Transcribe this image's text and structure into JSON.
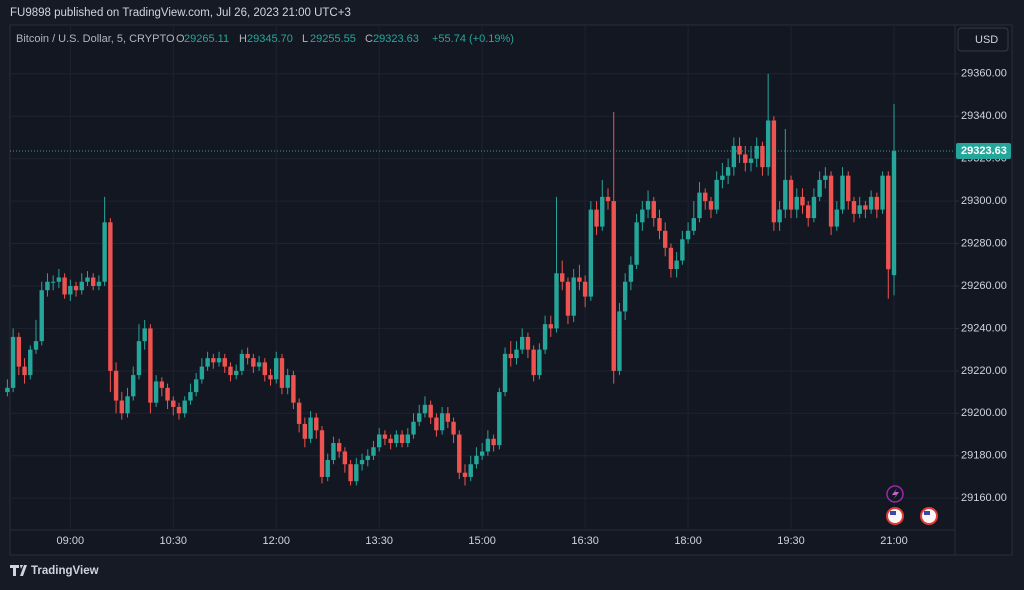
{
  "header": "FU9898 published on TradingView.com, Jul 26, 2023 21:00 UTC+3",
  "footer": "TradingView",
  "chart_data": {
    "type": "candlestick",
    "symbol": "Bitcoin / U.S. Dollar, 5, CRYPTO",
    "ohlc_keys": [
      "O",
      "H",
      "L",
      "C"
    ],
    "ohlc_labels": [
      "29265.11",
      "29345.70",
      "29255.55",
      "29323.63"
    ],
    "change_label": "+55.74 (+0.19%)",
    "currency": "USD",
    "up_color": "#26a69a",
    "down_color": "#ef5350",
    "grid": true,
    "ylim": [
      29145,
      29383
    ],
    "yticks": [
      {
        "value": 29160,
        "label": "29160.00"
      },
      {
        "value": 29180,
        "label": "29180.00"
      },
      {
        "value": 29200,
        "label": "29200.00"
      },
      {
        "value": 29220,
        "label": "29220.00"
      },
      {
        "value": 29240,
        "label": "29240.00"
      },
      {
        "value": 29260,
        "label": "29260.00"
      },
      {
        "value": 29280,
        "label": "29280.00"
      },
      {
        "value": 29300,
        "label": "29300.00"
      },
      {
        "value": 29320,
        "label": "29320.00"
      },
      {
        "value": 29340,
        "label": "29340.00"
      },
      {
        "value": 29360,
        "label": "29360.00"
      }
    ],
    "xticks": [
      "09:00",
      "10:30",
      "12:00",
      "13:30",
      "15:00",
      "16:30",
      "18:00",
      "19:30",
      "21:00"
    ],
    "candles": [
      [
        "08:05",
        29210,
        29216,
        29208,
        29212
      ],
      [
        "08:10",
        29212,
        29240,
        29210,
        29236
      ],
      [
        "08:15",
        29236,
        29238,
        29218,
        29222
      ],
      [
        "08:20",
        29222,
        29226,
        29214,
        29218
      ],
      [
        "08:25",
        29218,
        29232,
        29216,
        29230
      ],
      [
        "08:30",
        29230,
        29244,
        29228,
        29234
      ],
      [
        "08:35",
        29234,
        29262,
        29232,
        29258
      ],
      [
        "08:40",
        29258,
        29266,
        29255,
        29262
      ],
      [
        "08:45",
        29262,
        29265,
        29258,
        29262
      ],
      [
        "08:50",
        29262,
        29268,
        29259,
        29264
      ],
      [
        "08:55",
        29264,
        29266,
        29254,
        29256
      ],
      [
        "09:00",
        29256,
        29263,
        29253,
        29260
      ],
      [
        "09:05",
        29260,
        29262,
        29255,
        29258
      ],
      [
        "09:10",
        29258,
        29266,
        29256,
        29262
      ],
      [
        "09:15",
        29262,
        29267,
        29260,
        29264
      ],
      [
        "09:20",
        29264,
        29266,
        29258,
        29260
      ],
      [
        "09:25",
        29260,
        29265,
        29258,
        29262
      ],
      [
        "09:30",
        29262,
        29302,
        29260,
        29290
      ],
      [
        "09:35",
        29290,
        29292,
        29210,
        29220
      ],
      [
        "09:40",
        29220,
        29224,
        29200,
        29206
      ],
      [
        "09:45",
        29206,
        29210,
        29197,
        29200
      ],
      [
        "09:50",
        29200,
        29212,
        29198,
        29208
      ],
      [
        "09:55",
        29208,
        29222,
        29206,
        29218
      ],
      [
        "10:00",
        29218,
        29242,
        29216,
        29234
      ],
      [
        "10:05",
        29234,
        29244,
        29230,
        29240
      ],
      [
        "10:10",
        29240,
        29242,
        29200,
        29205
      ],
      [
        "10:15",
        29205,
        29218,
        29203,
        29215
      ],
      [
        "10:20",
        29215,
        29217,
        29208,
        29212
      ],
      [
        "10:25",
        29212,
        29214,
        29202,
        29206
      ],
      [
        "10:30",
        29206,
        29208,
        29199,
        29203
      ],
      [
        "10:35",
        29203,
        29205,
        29197,
        29200
      ],
      [
        "10:40",
        29200,
        29208,
        29198,
        29206
      ],
      [
        "10:45",
        29206,
        29214,
        29204,
        29210
      ],
      [
        "10:50",
        29210,
        29219,
        29208,
        29216
      ],
      [
        "10:55",
        29216,
        29226,
        29214,
        29222
      ],
      [
        "11:00",
        29222,
        29229,
        29220,
        29226
      ],
      [
        "11:05",
        29226,
        29228,
        29221,
        29224
      ],
      [
        "11:10",
        29224,
        29229,
        29222,
        29226
      ],
      [
        "11:15",
        29226,
        29228,
        29219,
        29222
      ],
      [
        "11:20",
        29222,
        29224,
        29215,
        29218
      ],
      [
        "11:25",
        29218,
        29223,
        29216,
        29220
      ],
      [
        "11:30",
        29220,
        29230,
        29218,
        29228
      ],
      [
        "11:35",
        29228,
        29231,
        29223,
        29226
      ],
      [
        "11:40",
        29226,
        29228,
        29219,
        29222
      ],
      [
        "11:45",
        29222,
        29227,
        29220,
        29224
      ],
      [
        "11:50",
        29224,
        29226,
        29215,
        29218
      ],
      [
        "11:55",
        29218,
        29221,
        29213,
        29216
      ],
      [
        "12:00",
        29216,
        29229,
        29214,
        29226
      ],
      [
        "12:05",
        29226,
        29228,
        29209,
        29212
      ],
      [
        "12:10",
        29212,
        29221,
        29209,
        29218
      ],
      [
        "12:15",
        29218,
        29220,
        29202,
        29205
      ],
      [
        "12:20",
        29205,
        29207,
        29191,
        29195
      ],
      [
        "12:25",
        29195,
        29198,
        29184,
        29188
      ],
      [
        "12:30",
        29188,
        29201,
        29186,
        29198
      ],
      [
        "12:35",
        29198,
        29200,
        29188,
        29192
      ],
      [
        "12:40",
        29192,
        29194,
        29167,
        29170
      ],
      [
        "12:45",
        29170,
        29181,
        29168,
        29178
      ],
      [
        "12:50",
        29178,
        29189,
        29176,
        29186
      ],
      [
        "12:55",
        29186,
        29188,
        29179,
        29182
      ],
      [
        "13:00",
        29182,
        29184,
        29172,
        29176
      ],
      [
        "13:05",
        29176,
        29178,
        29166,
        29168
      ],
      [
        "13:10",
        29168,
        29179,
        29166,
        29176
      ],
      [
        "13:15",
        29176,
        29181,
        29173,
        29178
      ],
      [
        "13:20",
        29178,
        29183,
        29175,
        29180
      ],
      [
        "13:25",
        29180,
        29187,
        29178,
        29184
      ],
      [
        "13:30",
        29184,
        29193,
        29182,
        29190
      ],
      [
        "13:35",
        29190,
        29192,
        29185,
        29188
      ],
      [
        "13:40",
        29188,
        29190,
        29183,
        29186
      ],
      [
        "13:45",
        29186,
        29192,
        29184,
        29190
      ],
      [
        "13:50",
        29190,
        29192,
        29184,
        29186
      ],
      [
        "13:55",
        29186,
        29193,
        29184,
        29190
      ],
      [
        "14:00",
        29190,
        29200,
        29188,
        29196
      ],
      [
        "14:05",
        29196,
        29204,
        29194,
        29200
      ],
      [
        "14:10",
        29200,
        29208,
        29198,
        29204
      ],
      [
        "14:15",
        29204,
        29206,
        29195,
        29198
      ],
      [
        "14:20",
        29198,
        29200,
        29189,
        29192
      ],
      [
        "14:25",
        29192,
        29203,
        29190,
        29200
      ],
      [
        "14:30",
        29200,
        29203,
        29193,
        29196
      ],
      [
        "14:35",
        29196,
        29198,
        29186,
        29190
      ],
      [
        "14:40",
        29190,
        29192,
        29169,
        29172
      ],
      [
        "14:45",
        29172,
        29176,
        29166,
        29170
      ],
      [
        "14:50",
        29170,
        29180,
        29168,
        29176
      ],
      [
        "14:55",
        29176,
        29184,
        29174,
        29180
      ],
      [
        "15:00",
        29180,
        29186,
        29178,
        29182
      ],
      [
        "15:05",
        29182,
        29192,
        29180,
        29188
      ],
      [
        "15:10",
        29188,
        29190,
        29182,
        29185
      ],
      [
        "15:15",
        29185,
        29212,
        29183,
        29210
      ],
      [
        "15:20",
        29210,
        29231,
        29208,
        29228
      ],
      [
        "15:25",
        29228,
        29234,
        29222,
        29226
      ],
      [
        "15:30",
        29226,
        29234,
        29223,
        29230
      ],
      [
        "15:35",
        29230,
        29240,
        29228,
        29236
      ],
      [
        "15:40",
        29236,
        29238,
        29226,
        29230
      ],
      [
        "15:45",
        29230,
        29232,
        29215,
        29218
      ],
      [
        "15:50",
        29218,
        29233,
        29216,
        29230
      ],
      [
        "15:55",
        29230,
        29246,
        29228,
        29242
      ],
      [
        "16:00",
        29242,
        29246,
        29236,
        29240
      ],
      [
        "16:05",
        29240,
        29302,
        29238,
        29266
      ],
      [
        "16:10",
        29266,
        29272,
        29258,
        29262
      ],
      [
        "16:15",
        29262,
        29264,
        29242,
        29246
      ],
      [
        "16:20",
        29246,
        29268,
        29243,
        29264
      ],
      [
        "16:25",
        29264,
        29270,
        29258,
        29262
      ],
      [
        "16:30",
        29262,
        29265,
        29250,
        29255
      ],
      [
        "16:35",
        29255,
        29300,
        29253,
        29296
      ],
      [
        "16:40",
        29296,
        29300,
        29284,
        29288
      ],
      [
        "16:45",
        29288,
        29310,
        29286,
        29302
      ],
      [
        "16:50",
        29302,
        29306,
        29296,
        29300
      ],
      [
        "16:55",
        29300,
        29342,
        29214,
        29220
      ],
      [
        "17:00",
        29220,
        29252,
        29218,
        29248
      ],
      [
        "17:05",
        29248,
        29266,
        29244,
        29262
      ],
      [
        "17:10",
        29262,
        29274,
        29258,
        29270
      ],
      [
        "17:15",
        29270,
        29294,
        29268,
        29290
      ],
      [
        "17:20",
        29290,
        29300,
        29286,
        29296
      ],
      [
        "17:25",
        29296,
        29305,
        29292,
        29300
      ],
      [
        "17:30",
        29300,
        29302,
        29288,
        29292
      ],
      [
        "17:35",
        29292,
        29296,
        29282,
        29286
      ],
      [
        "17:40",
        29286,
        29290,
        29274,
        29278
      ],
      [
        "17:45",
        29278,
        29280,
        29264,
        29268
      ],
      [
        "17:50",
        29268,
        29276,
        29264,
        29272
      ],
      [
        "17:55",
        29272,
        29286,
        29270,
        29282
      ],
      [
        "18:00",
        29282,
        29290,
        29280,
        29286
      ],
      [
        "18:05",
        29286,
        29300,
        29284,
        29292
      ],
      [
        "18:10",
        29292,
        29309,
        29290,
        29304
      ],
      [
        "18:15",
        29304,
        29306,
        29296,
        29300
      ],
      [
        "18:20",
        29300,
        29302,
        29292,
        29296
      ],
      [
        "18:25",
        29296,
        29314,
        29294,
        29310
      ],
      [
        "18:30",
        29310,
        29318,
        29306,
        29312
      ],
      [
        "18:35",
        29312,
        29320,
        29308,
        29316
      ],
      [
        "18:40",
        29316,
        29330,
        29312,
        29326
      ],
      [
        "18:45",
        29326,
        29330,
        29318,
        29322
      ],
      [
        "18:50",
        29322,
        29326,
        29314,
        29318
      ],
      [
        "18:55",
        29318,
        29326,
        29314,
        29320
      ],
      [
        "19:00",
        29320,
        29330,
        29316,
        29326
      ],
      [
        "19:05",
        29326,
        29328,
        29312,
        29316
      ],
      [
        "19:10",
        29316,
        29360,
        29312,
        29338
      ],
      [
        "19:15",
        29338,
        29340,
        29286,
        29290
      ],
      [
        "19:20",
        29290,
        29300,
        29286,
        29296
      ],
      [
        "19:25",
        29296,
        29334,
        29292,
        29310
      ],
      [
        "19:30",
        29310,
        29312,
        29292,
        29296
      ],
      [
        "19:35",
        29296,
        29306,
        29292,
        29302
      ],
      [
        "19:40",
        29302,
        29306,
        29294,
        29298
      ],
      [
        "19:45",
        29298,
        29300,
        29288,
        29292
      ],
      [
        "19:50",
        29292,
        29306,
        29290,
        29302
      ],
      [
        "19:55",
        29302,
        29314,
        29300,
        29310
      ],
      [
        "20:00",
        29310,
        29316,
        29306,
        29312
      ],
      [
        "20:05",
        29312,
        29314,
        29284,
        29288
      ],
      [
        "20:10",
        29288,
        29300,
        29286,
        29296
      ],
      [
        "20:15",
        29296,
        29316,
        29294,
        29312
      ],
      [
        "20:20",
        29312,
        29314,
        29296,
        29300
      ],
      [
        "20:25",
        29300,
        29302,
        29290,
        29294
      ],
      [
        "20:30",
        29294,
        29302,
        29292,
        29298
      ],
      [
        "20:35",
        29298,
        29300,
        29292,
        29296
      ],
      [
        "20:40",
        29296,
        29305,
        29294,
        29302
      ],
      [
        "20:45",
        29302,
        29304,
        29292,
        29296
      ],
      [
        "20:50",
        29296,
        29314,
        29294,
        29312
      ],
      [
        "20:55",
        29312,
        29314,
        29254,
        29267.89
      ],
      [
        "21:00",
        29265.11,
        29345.7,
        29255.55,
        29323.63
      ]
    ]
  }
}
